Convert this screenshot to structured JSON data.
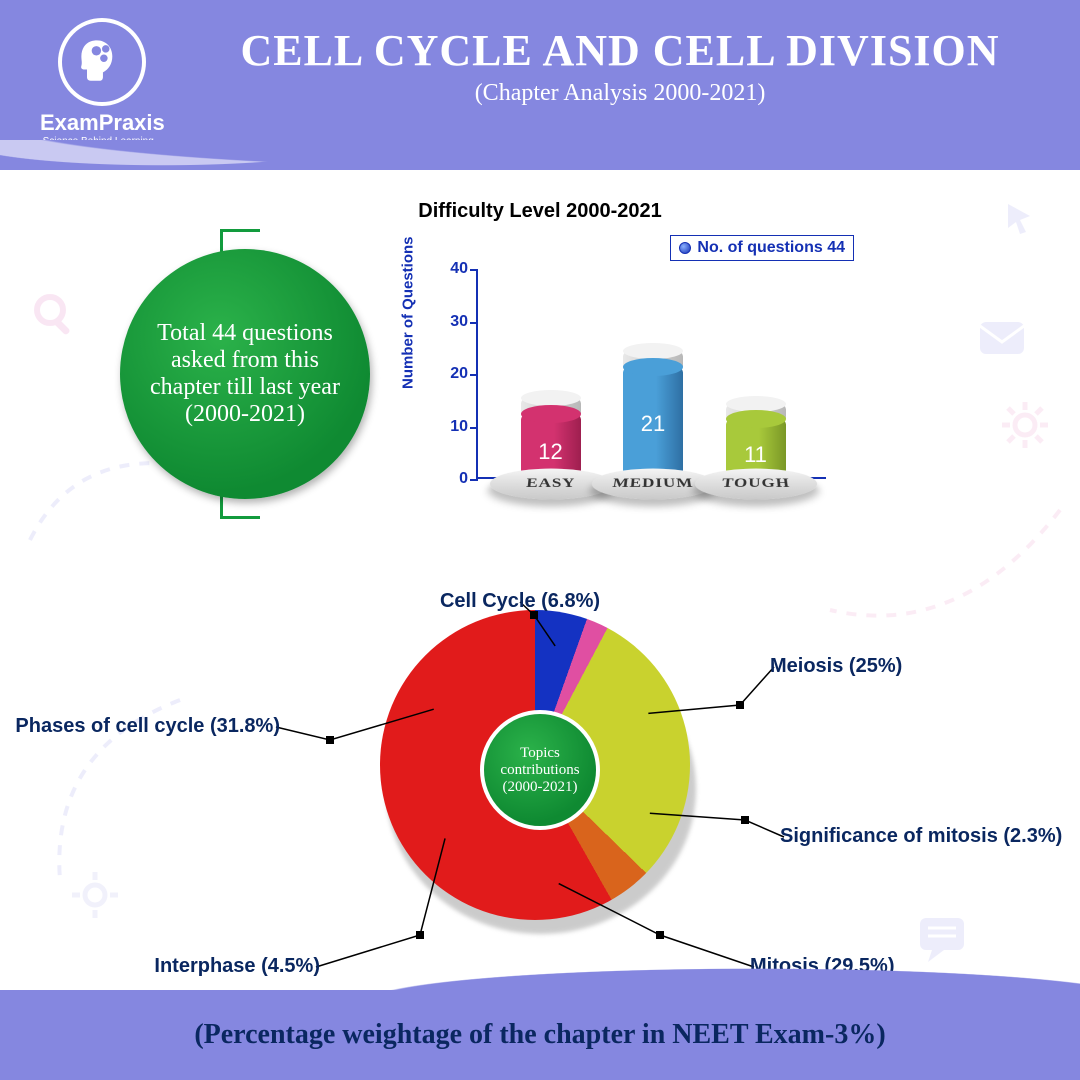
{
  "brand": {
    "name": "ExamPraxis",
    "tagline": "Science Behind Learning..."
  },
  "header": {
    "title": "CELL CYCLE AND CELL DIVISION",
    "subtitle": "(Chapter Analysis 2000-2021)"
  },
  "summary_circle": "Total 44 questions asked from this chapter till last year (2000-2021)",
  "bar_chart": {
    "type": "bar",
    "title": "Difficulty Level 2000-2021",
    "legend": "No. of questions 44",
    "y_label": "Number of Questions",
    "ylim": [
      0,
      40
    ],
    "ytick_step": 10,
    "axis_color": "#1430b4",
    "categories": [
      "EASY",
      "MEDIUM",
      "TOUGH"
    ],
    "values": [
      12,
      21,
      11
    ],
    "bar_colors": [
      "#d3326f",
      "#4a9fd8",
      "#a8c93b"
    ],
    "bar_colors_dark": [
      "#9e1f4f",
      "#2e6fa3",
      "#7a9726"
    ],
    "cap_height_units": 3,
    "title_fontsize": 20,
    "value_fontsize": 22
  },
  "pie_chart": {
    "type": "pie",
    "center_label": "Topics contributions (2000-2021)",
    "label_fontsize": 20,
    "label_color": "#0a2760",
    "slices": [
      {
        "label": "Cell Cycle (6.8%)",
        "value": 6.8,
        "color": "#26c07a"
      },
      {
        "label": "Meiosis (25%)",
        "value": 25.0,
        "color": "#1432c2"
      },
      {
        "label": "Significance of mitosis (2.3%)",
        "value": 2.3,
        "color": "#e04fa2"
      },
      {
        "label": "Mitosis (29.5%)",
        "value": 29.5,
        "color": "#c9d22e"
      },
      {
        "label": "Interphase (4.5%)",
        "value": 4.5,
        "color": "#d9641c"
      },
      {
        "label": "Phases of cell cycle (31.8%)",
        "value": 31.8,
        "color": "#e11b1b"
      }
    ],
    "start_angle_deg": -95
  },
  "footer": {
    "text": "(Percentage weightage of the chapter in NEET Exam-3%)"
  },
  "theme": {
    "header_bg": "#8587e0",
    "accent_green": "#129b3d"
  }
}
